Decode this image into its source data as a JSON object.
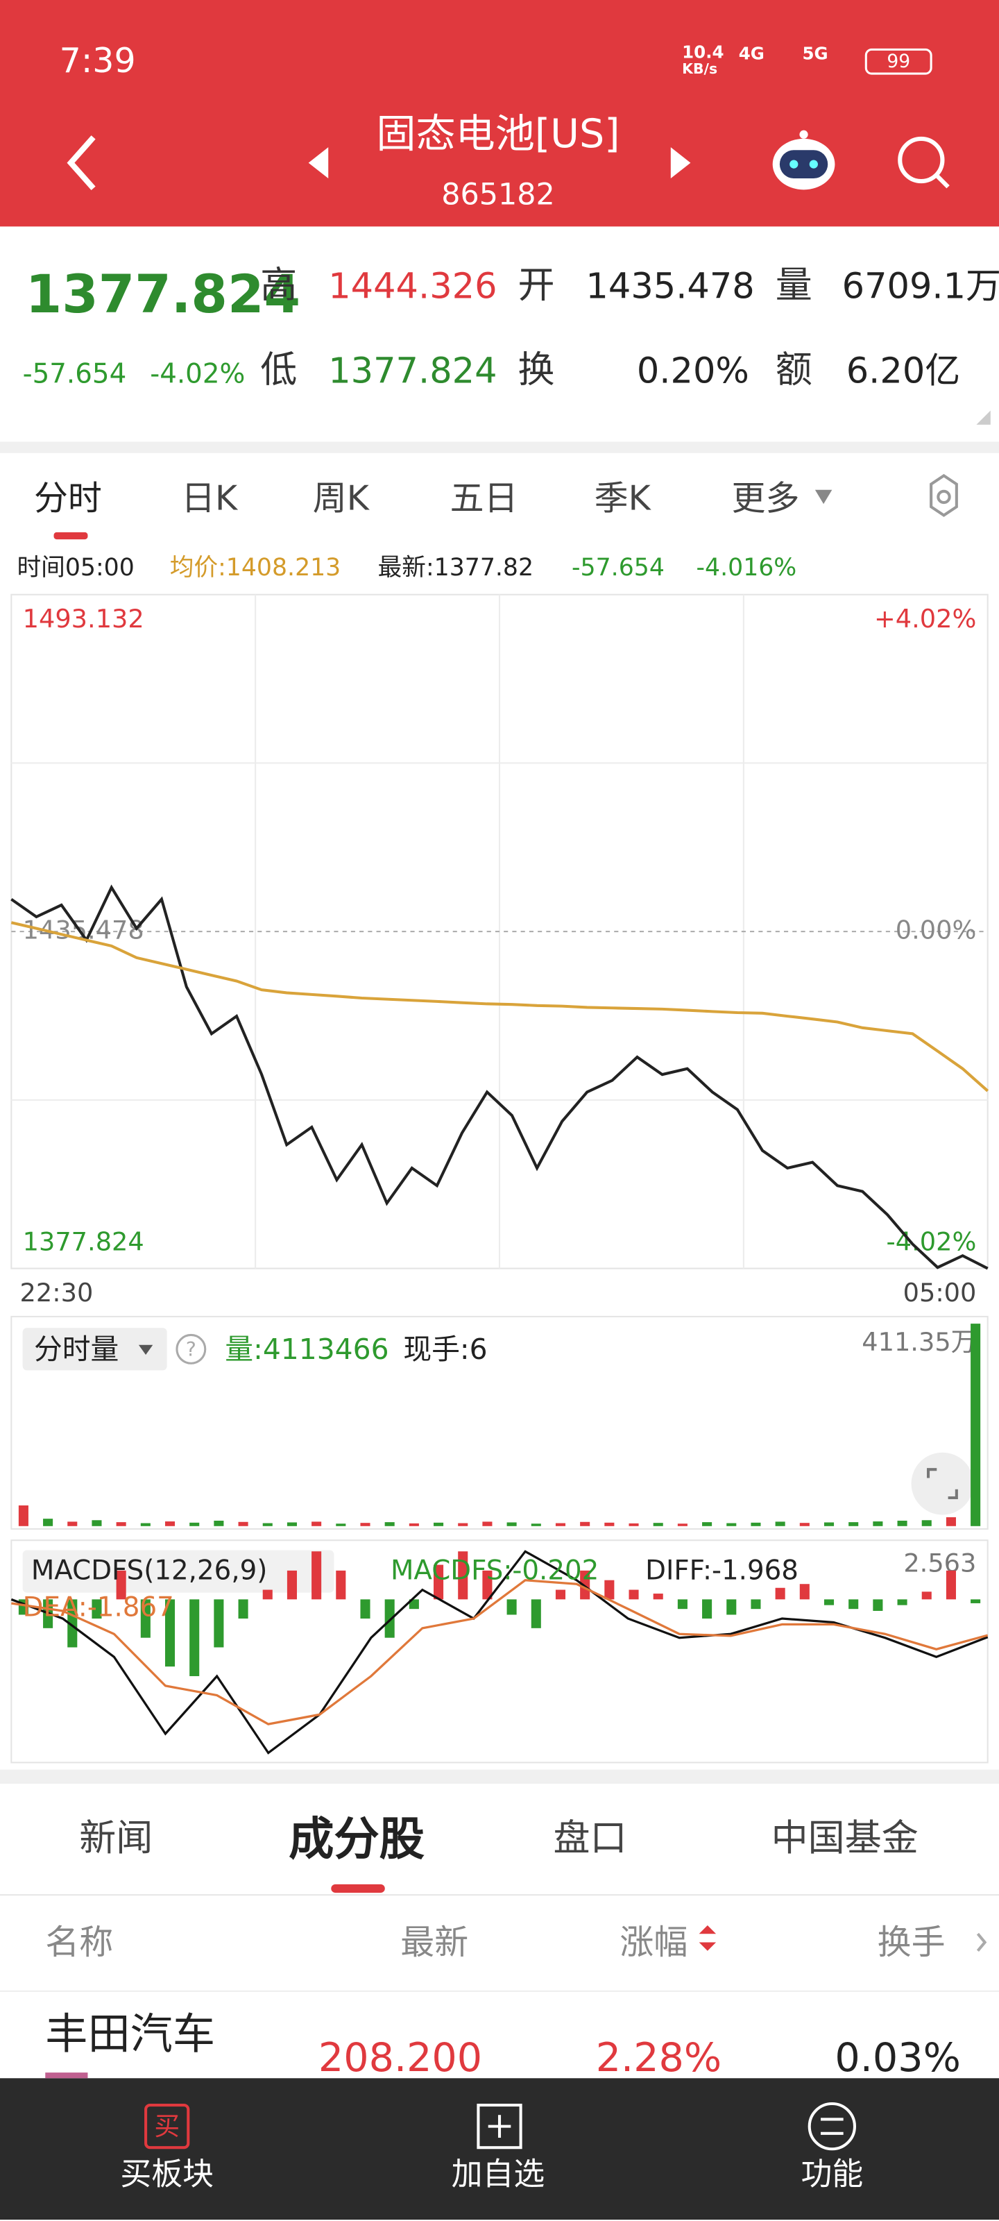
{
  "status_bar": {
    "time": "7:39",
    "net_speed": "10.4",
    "net_unit": "KB/s",
    "signal_1": "4G",
    "signal_2": "5G",
    "battery": "99"
  },
  "header": {
    "title": "固态电池[US]",
    "code": "865182"
  },
  "quote": {
    "price": "1377.824",
    "change": "-57.654",
    "change_pct": "-4.02%",
    "fields": [
      {
        "label": "高",
        "value": "1444.326"
      },
      {
        "label": "开",
        "value": "1435.478"
      },
      {
        "label": "量",
        "value": "6709.1万"
      },
      {
        "label": "低",
        "value": "1377.824"
      },
      {
        "label": "换",
        "value": "0.20%"
      },
      {
        "label": "额",
        "value": "6.20亿"
      }
    ]
  },
  "chart_tabs": [
    "分时",
    "日K",
    "周K",
    "五日",
    "季K",
    "更多"
  ],
  "info_row": {
    "time": "时间05:00",
    "avg": "均价:1408.213",
    "latest": "最新:1377.82",
    "change": "-57.654",
    "pct": "-4.016%"
  },
  "chart_data": [
    {
      "type": "line",
      "xlim": [
        0,
        39
      ],
      "xticks": [
        {
          "value": 0,
          "label": "22:30"
        },
        {
          "value": 39,
          "label": "05:00"
        }
      ],
      "ylim": [
        1377.824,
        1493.132
      ],
      "yticks": [
        1377.824,
        1435.478,
        1493.132
      ],
      "tick_colors": [
        "#2e9a2e",
        "#888888",
        "#e0393e"
      ],
      "y2lim": [
        -4.02,
        4.02
      ],
      "y2ticks": [
        {
          "value": -4.02,
          "label": "-4.02%"
        },
        {
          "value": 0,
          "label": "0.00%"
        },
        {
          "value": 4.02,
          "label": "+4.02%"
        }
      ],
      "series": [
        {
          "color": "#222222",
          "values": [
            1441,
            1438,
            1440,
            1434,
            1443,
            1436,
            1441,
            1426,
            1418,
            1421,
            1411,
            1399,
            1402,
            1393,
            1399,
            1389,
            1395,
            1392,
            1401,
            1408,
            1404,
            1395,
            1403,
            1408,
            1410,
            1414,
            1411,
            1412,
            1408,
            1405,
            1398,
            1395,
            1396,
            1392,
            1391,
            1387,
            1382,
            1378,
            1380,
            1377.824
          ]
        },
        {
          "color": "#d9a33a",
          "values": [
            1437,
            1436,
            1435,
            1434,
            1433,
            1431,
            1430,
            1429,
            1428,
            1427,
            1425.5,
            1425,
            1424.7,
            1424.4,
            1424.1,
            1423.9,
            1423.7,
            1423.5,
            1423.3,
            1423.1,
            1423,
            1422.8,
            1422.7,
            1422.5,
            1422.4,
            1422.3,
            1422.2,
            1422,
            1421.8,
            1421.6,
            1421.5,
            1421,
            1420.5,
            1420,
            1419,
            1418.5,
            1418,
            1415,
            1412,
            1408.213
          ]
        }
      ]
    },
    {
      "type": "bar",
      "title": "分时量",
      "volume_label": "量:4113466",
      "hand_label": "现手:6",
      "up_color": "#e0393e",
      "down_color": "#2e9a2e",
      "ylim": [
        0,
        4113500
      ],
      "yticks": [
        {
          "value": 4113500,
          "label": "411.35万"
        }
      ],
      "values": [
        420000,
        150000,
        90000,
        120000,
        80000,
        60000,
        95000,
        70000,
        110000,
        85000,
        60000,
        75000,
        90000,
        50000,
        65000,
        80000,
        55000,
        70000,
        60000,
        90000,
        75000,
        50000,
        60000,
        85000,
        70000,
        55000,
        65000,
        50000,
        80000,
        60000,
        70000,
        90000,
        65000,
        75000,
        80000,
        95000,
        110000,
        120000,
        180000,
        4113466
      ]
    },
    {
      "type": "macd",
      "title": "MACDFS(12,26,9)",
      "macd_label": "MACDFS:-0.202",
      "diff_label": "DIFF:-1.968",
      "dea_label": "DEA:-1.867",
      "up_color": "#e0393e",
      "down_color": "#2e9a2e",
      "ylim": [
        -8.5,
        2.563
      ],
      "yticks": [
        2.563
      ],
      "values": [
        -0.8,
        -1.5,
        -2.5,
        -1,
        1.5,
        -2,
        -3.5,
        -4,
        -2.5,
        -1,
        0.5,
        1.5,
        2.5,
        1.5,
        -1,
        -2,
        -0.5,
        1.8,
        2.5,
        1.5,
        -0.8,
        -1.5,
        0.5,
        1.5,
        1,
        0.5,
        0.3,
        -0.5,
        -1,
        -0.8,
        -0.5,
        0.6,
        0.8,
        -0.3,
        -0.5,
        -0.6,
        -0.3,
        0.4,
        1.5,
        -0.202
      ],
      "series": [
        {
          "color": "#111111",
          "values": [
            0,
            -1,
            -3,
            -7,
            -4,
            -8,
            -6,
            -2,
            0.5,
            -1,
            2.5,
            1,
            -1,
            -2,
            -1.8,
            -1,
            -1.2,
            -2,
            -3,
            -1.968
          ]
        },
        {
          "color": "#e0783a",
          "values": [
            -0.2,
            -0.6,
            -1.8,
            -4.5,
            -5,
            -6.5,
            -6,
            -4,
            -1.5,
            -1,
            1,
            0.8,
            -0.5,
            -1.8,
            -1.9,
            -1.3,
            -1.3,
            -1.8,
            -2.6,
            -1.867
          ]
        }
      ]
    }
  ],
  "section_tabs": [
    "新闻",
    "成分股",
    "盘口",
    "中国基金"
  ],
  "table": {
    "header": [
      "名称",
      "最新",
      "涨幅",
      "换手"
    ],
    "rows": [
      [
        "丰田汽车",
        "208.200",
        "2.28%",
        "0.03%"
      ]
    ]
  },
  "bottom_nav": {
    "buy_icon": "买",
    "items": [
      "买板块",
      "加自选",
      "功能"
    ]
  }
}
